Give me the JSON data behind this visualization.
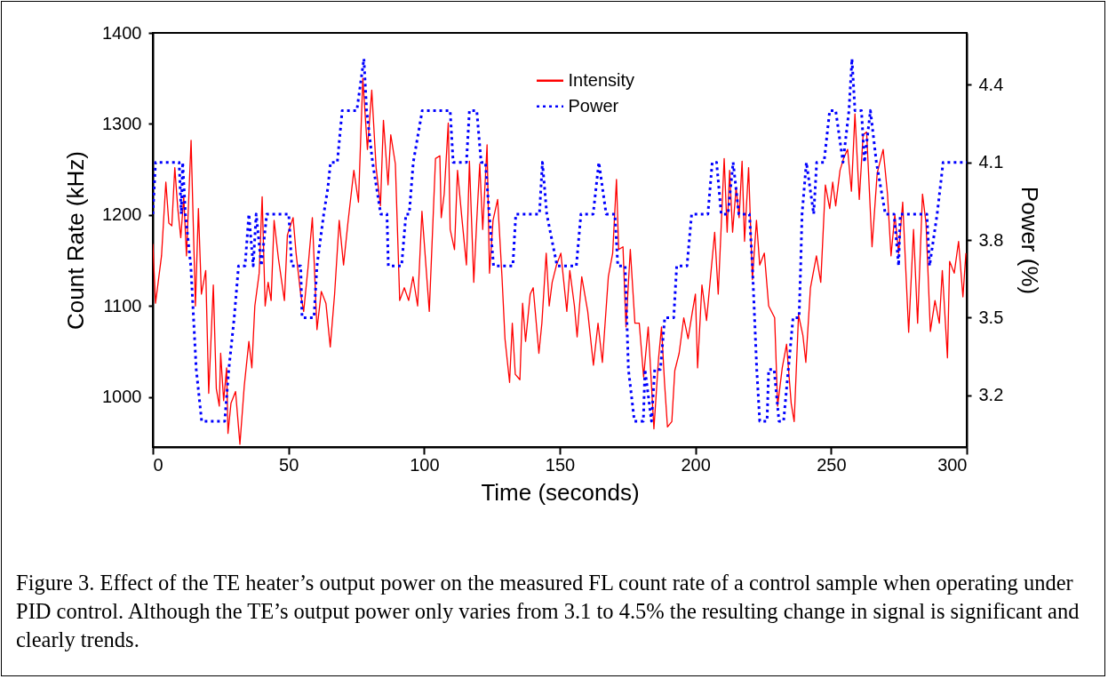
{
  "chart_data": {
    "type": "line",
    "xlabel": "Time (seconds)",
    "ylabel": "Count Rate (kHz)",
    "y2label": "Power (%)",
    "xlim": [
      0,
      300
    ],
    "xticks": [
      0,
      50,
      100,
      150,
      200,
      250,
      300
    ],
    "ylim": [
      945,
      1400
    ],
    "yticks": [
      1000,
      1100,
      1200,
      1300,
      1400
    ],
    "y2lim": [
      3.0,
      4.6
    ],
    "y2ticks": [
      3.2,
      3.5,
      3.8,
      4.1,
      4.4
    ],
    "legend": "top right",
    "series": [
      {
        "name": "Intensity",
        "color": "#ff0000",
        "line_style": "solid",
        "x": [
          0,
          1,
          3.2,
          4.8,
          5.9,
          7,
          8.1,
          9.2,
          10.3,
          11.4,
          12.4,
          14.1,
          15.7,
          16.8,
          17.9,
          19.5,
          20.6,
          22.3,
          23.4,
          24.5,
          25,
          26.1,
          27.2,
          27.7,
          28.8,
          30.5,
          32.1,
          33.7,
          35.4,
          36.5,
          37.6,
          39.2,
          40.3,
          41.4,
          42.5,
          43.6,
          44.7,
          46.3,
          48.5,
          49.6,
          51.7,
          52.8,
          54.5,
          55.6,
          57.2,
          58.8,
          60.5,
          62.1,
          63.8,
          65.4,
          67,
          68.7,
          70.3,
          71.9,
          74.1,
          75.8,
          77.4,
          79.1,
          80.7,
          82.3,
          83.9,
          85,
          86.7,
          87.7,
          89.4,
          91,
          92.7,
          94.3,
          95.9,
          97.6,
          99.2,
          101.9,
          104.2,
          105.8,
          106.3,
          107.4,
          108.9,
          109.6,
          111.2,
          112.3,
          113.9,
          115.6,
          116.7,
          118.3,
          119.4,
          120.5,
          121.6,
          123.2,
          124.1,
          125.4,
          127.1,
          128.7,
          129.8,
          131.5,
          132.5,
          133.6,
          135.3,
          136.3,
          137.4,
          139.1,
          140.2,
          142.3,
          143.4,
          145,
          146.1,
          147.2,
          148.8,
          150.4,
          152.6,
          153.7,
          155.4,
          156.4,
          158.1,
          160.3,
          162.4,
          164.1,
          165.7,
          167.9,
          169.5,
          170.9,
          171.7,
          173.3,
          174.4,
          176,
          177.7,
          179.3,
          180.9,
          182.6,
          184.7,
          186.4,
          187.5,
          188.6,
          189.7,
          191.3,
          192.4,
          194,
          195.7,
          197.3,
          198.9,
          200,
          200.8,
          202.4,
          204.1,
          205.2,
          207.1,
          208.4,
          210.6,
          211.7,
          212.6,
          213.7,
          215,
          216.1,
          217.2,
          218.1,
          219.6,
          221,
          222.5,
          223.7,
          225.4,
          227,
          229.2,
          230.3,
          232,
          233.6,
          235.3,
          236.4,
          238,
          239.6,
          240.7,
          242.4,
          244.6,
          246.2,
          247.9,
          249.5,
          250.6,
          251.7,
          253.3,
          254.6,
          256.1,
          257.5,
          258.8,
          260.4,
          261.8,
          263.1,
          265.1,
          267,
          269.2,
          270.8,
          272.1,
          273.5,
          274.9,
          276.4,
          278.6,
          280.4,
          281.9,
          283.7,
          285,
          286.6,
          288.3,
          289.9,
          291,
          292.9,
          293.7,
          295.4,
          297,
          298.6,
          299.7
        ],
        "values": [
          1168,
          1103,
          1155,
          1236,
          1191,
          1188,
          1252,
          1207,
          1175,
          1220,
          1155,
          1282,
          1100,
          1207,
          1113,
          1139,
          1004,
          1123,
          1009,
          990,
          1048,
          996,
          1032,
          960,
          993,
          1006,
          948,
          1012,
          1061,
          1032,
          1100,
          1136,
          1220,
          1100,
          1126,
          1106,
          1194,
          1152,
          1106,
          1178,
          1197,
          1158,
          1113,
          1094,
          1142,
          1197,
          1074,
          1116,
          1103,
          1055,
          1113,
          1194,
          1145,
          1191,
          1249,
          1214,
          1350,
          1272,
          1337,
          1252,
          1210,
          1304,
          1233,
          1288,
          1256,
          1106,
          1120,
          1106,
          1132,
          1100,
          1204,
          1094,
          1262,
          1265,
          1197,
          1223,
          1301,
          1184,
          1162,
          1249,
          1197,
          1145,
          1259,
          1126,
          1194,
          1256,
          1184,
          1277,
          1136,
          1194,
          1217,
          1132,
          1064,
          1016,
          1081,
          1025,
          1019,
          1103,
          1061,
          1113,
          1120,
          1048,
          1081,
          1158,
          1100,
          1126,
          1145,
          1158,
          1094,
          1139,
          1100,
          1066,
          1132,
          1094,
          1035,
          1081,
          1038,
          1132,
          1158,
          1239,
          1162,
          1165,
          1077,
          1162,
          1081,
          1081,
          1022,
          1077,
          965,
          1042,
          1077,
          1016,
          967,
          973,
          1029,
          1048,
          1087,
          1064,
          1094,
          1113,
          1032,
          1123,
          1084,
          1120,
          1181,
          1113,
          1262,
          1181,
          1249,
          1181,
          1230,
          1197,
          1259,
          1171,
          1252,
          1129,
          1194,
          1145,
          1158,
          1100,
          1087,
          990,
          1032,
          1058,
          993,
          973,
          1090,
          1068,
          1038,
          1120,
          1155,
          1126,
          1233,
          1207,
          1236,
          1210,
          1249,
          1262,
          1272,
          1226,
          1311,
          1217,
          1288,
          1291,
          1165,
          1246,
          1272,
          1223,
          1155,
          1200,
          1158,
          1214,
          1071,
          1184,
          1081,
          1223,
          1191,
          1072,
          1106,
          1081,
          1139,
          1043,
          1149,
          1136,
          1171,
          1110,
          1158
        ]
      },
      {
        "name": "Power",
        "color": "#0000ff",
        "line_style": "dotted",
        "axis": "y2",
        "x": [
          0,
          1,
          9.7,
          10.5,
          11,
          12,
          14,
          16,
          18,
          26.5,
          28,
          30,
          31.6,
          34,
          35.4,
          37,
          38.1,
          40,
          42,
          44.7,
          50.1,
          51.2,
          54.5,
          55,
          59.4,
          60.5,
          63,
          64.5,
          65.5,
          68,
          69.8,
          75.2,
          77.8,
          78.8,
          81,
          84,
          86.3,
          86.8,
          91.7,
          93.3,
          94.5,
          96,
          99.3,
          109.6,
          110.7,
          115.6,
          116.7,
          119.4,
          121,
          122.6,
          124,
          125.6,
          132.7,
          133.8,
          142.5,
          143.6,
          145.2,
          149,
          156.1,
          157.8,
          162.3,
          164.4,
          167.1,
          170.3,
          171.4,
          174.1,
          175.3,
          177.5,
          180.8,
          181.4,
          183.8,
          185,
          187.1,
          188.7,
          192,
          193.1,
          196.9,
          198.6,
          204.6,
          206.2,
          207.8,
          209.5,
          212,
          213.9,
          216,
          219.9,
          221,
          222.6,
          223.7,
          226.4,
          227,
          229,
          230.8,
          232.5,
          236,
          238.2,
          238.8,
          239.3,
          240.9,
          243.6,
          244.7,
          247.4,
          249.5,
          251.7,
          254.4,
          256.6,
          257.7,
          258.8,
          261.2,
          262.3,
          264.5,
          266.7,
          270,
          273.2,
          274.9,
          275.5,
          285.3,
          286.3,
          289.1,
          291.3,
          300
        ],
        "values": [
          3.9,
          4.1,
          4.1,
          3.9,
          4.1,
          3.9,
          3.7,
          3.3,
          3.1,
          3.1,
          3.3,
          3.5,
          3.7,
          3.7,
          3.9,
          3.7,
          3.9,
          3.7,
          3.9,
          3.9,
          3.9,
          3.7,
          3.7,
          3.5,
          3.5,
          3.7,
          3.9,
          4.0,
          4.1,
          4.1,
          4.3,
          4.3,
          4.5,
          4.3,
          4.1,
          3.9,
          3.9,
          3.7,
          3.7,
          3.9,
          3.9,
          4.1,
          4.3,
          4.3,
          4.1,
          4.1,
          4.3,
          4.3,
          4.1,
          4.1,
          3.9,
          3.7,
          3.7,
          3.9,
          3.9,
          4.1,
          3.9,
          3.7,
          3.7,
          3.9,
          3.9,
          4.1,
          3.9,
          3.9,
          3.7,
          3.7,
          3.3,
          3.1,
          3.1,
          3.3,
          3.1,
          3.3,
          3.3,
          3.5,
          3.5,
          3.7,
          3.7,
          3.9,
          3.9,
          4.1,
          4.1,
          3.9,
          3.9,
          4.1,
          3.9,
          3.9,
          3.7,
          3.3,
          3.1,
          3.1,
          3.3,
          3.3,
          3.1,
          3.1,
          3.5,
          3.5,
          3.7,
          3.9,
          4.1,
          3.9,
          4.1,
          4.1,
          4.3,
          4.3,
          4.1,
          4.3,
          4.5,
          4.3,
          4.3,
          4.1,
          4.3,
          4.1,
          3.9,
          3.9,
          3.7,
          3.9,
          3.9,
          3.7,
          3.9,
          4.1,
          4.1
        ]
      }
    ],
    "annotations": [
      "Figure 3. Effect of the TE heater’s output power on the measured FL count rate of a control sample when operating under PID control. Although the TE’s output power only varies from 3.1 to 4.5% the resulting change in signal is significant and clearly trends."
    ]
  }
}
